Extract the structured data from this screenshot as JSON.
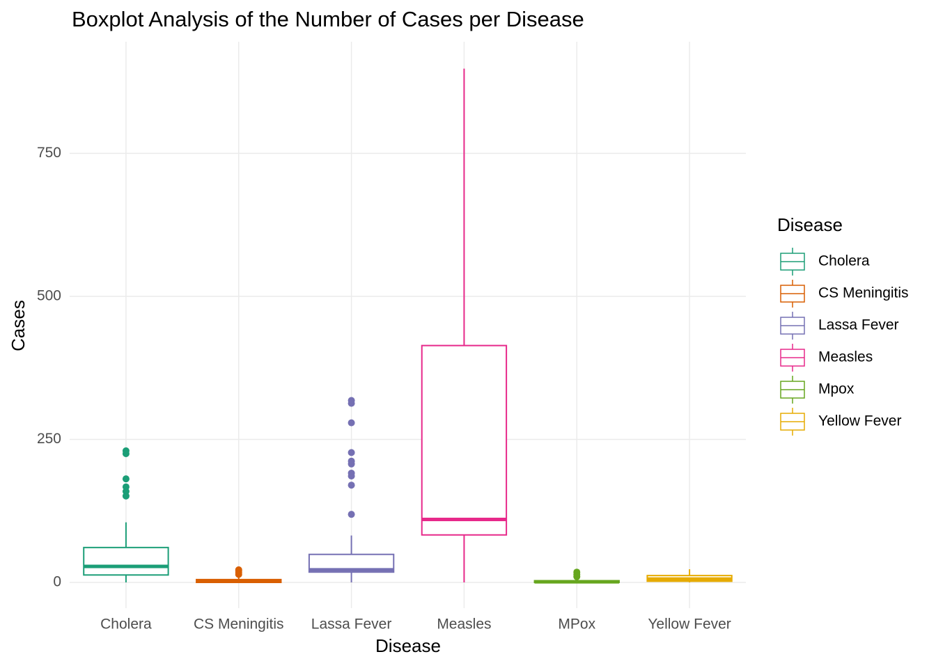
{
  "chart_data": {
    "type": "boxplot",
    "title": "Boxplot Analysis of the Number of Cases per Disease",
    "x_label": "Disease",
    "y_label": "Cases",
    "legend_title": "Disease",
    "categories": [
      "Cholera",
      "CS Meningitis",
      "Lassa Fever",
      "Measles",
      "MPox",
      "Yellow Fever"
    ],
    "ylim": [
      -45,
      945
    ],
    "yticks": [
      0,
      250,
      500,
      750
    ],
    "grid": true,
    "legend": "right",
    "series": [
      {
        "name": "Cholera",
        "color": "#1B9E77",
        "min": 0,
        "q1": 13,
        "median": 28,
        "q3": 61,
        "max": 105,
        "outliers": [
          230,
          225,
          181,
          167,
          159,
          151
        ]
      },
      {
        "name": "CS Meningitis",
        "color": "#D95F02",
        "min": 0,
        "q1": 0,
        "median": 2,
        "q3": 5,
        "max": 11,
        "outliers": [
          14,
          17,
          20,
          22
        ]
      },
      {
        "name": "Lassa Fever",
        "color": "#7570B3",
        "min": 0,
        "q1": 18,
        "median": 22,
        "q3": 49,
        "max": 82,
        "outliers": [
          318,
          313,
          279,
          227,
          212,
          207,
          191,
          186,
          170,
          119
        ]
      },
      {
        "name": "Measles",
        "color": "#E7298A",
        "min": 0,
        "q1": 83,
        "median": 110,
        "q3": 414,
        "max": 898,
        "outliers": []
      },
      {
        "name": "Mpox",
        "color": "#66A61E",
        "min": 0,
        "q1": 0,
        "median": 1,
        "q3": 3,
        "max": 7,
        "outliers": [
          10,
          14,
          18
        ]
      },
      {
        "name": "Yellow Fever",
        "color": "#E6AB02",
        "min": 0,
        "q1": 2,
        "median": 6,
        "q3": 12,
        "max": 23,
        "outliers": []
      }
    ]
  }
}
